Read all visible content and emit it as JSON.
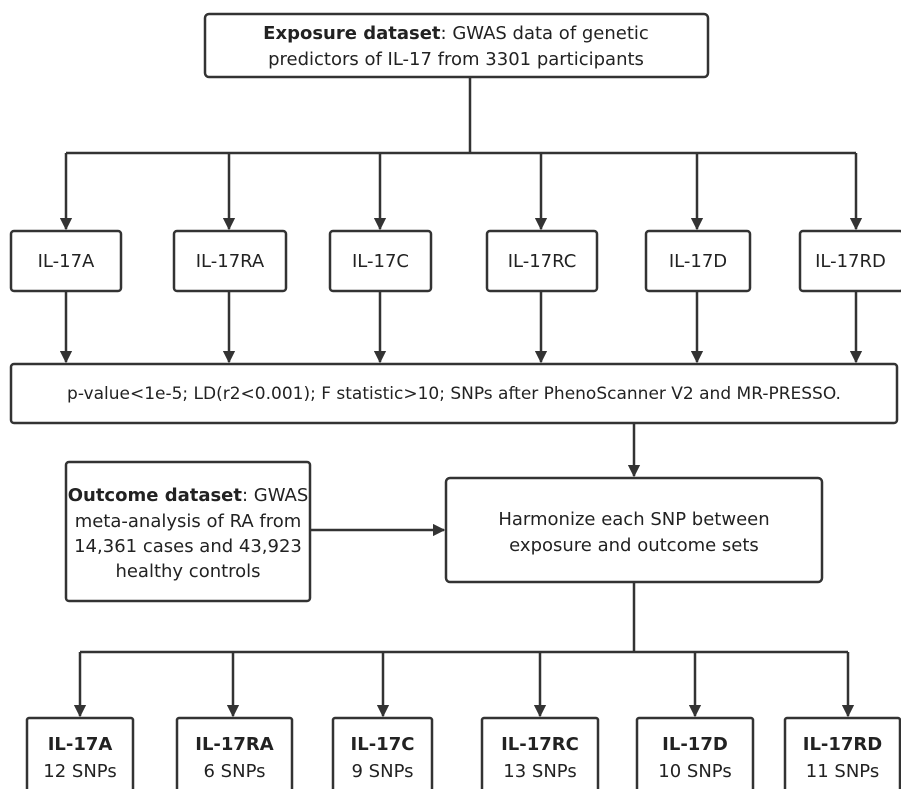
{
  "exposure": {
    "title": "Exposure dataset",
    "lines": [
      ": GWAS data of genetic",
      "predictors of IL-17 from 3301 participants"
    ]
  },
  "traits": [
    "IL-17A",
    "IL-17RA",
    "IL-17C",
    "IL-17RC",
    "IL-17D",
    "IL-17RD"
  ],
  "filter": "p-value<1e-5; LD(r2<0.001); F statistic>10; SNPs after PhenoScanner V2 and MR-PRESSO.",
  "outcome": {
    "title": "Outcome dataset",
    "lines": [
      ": GWAS",
      "meta-analysis of RA from",
      "14,361 cases and 43,923",
      "healthy controls"
    ]
  },
  "harmonize": {
    "lines": [
      "Harmonize each SNP between",
      "exposure and outcome sets"
    ]
  },
  "results": [
    {
      "name": "IL-17A",
      "snps": "12 SNPs"
    },
    {
      "name": "IL-17RA",
      "snps": "6 SNPs"
    },
    {
      "name": "IL-17C",
      "snps": "9 SNPs"
    },
    {
      "name": "IL-17RC",
      "snps": "13 SNPs"
    },
    {
      "name": "IL-17D",
      "snps": "10 SNPs"
    },
    {
      "name": "IL-17RD",
      "snps": "11 SNPs"
    }
  ]
}
